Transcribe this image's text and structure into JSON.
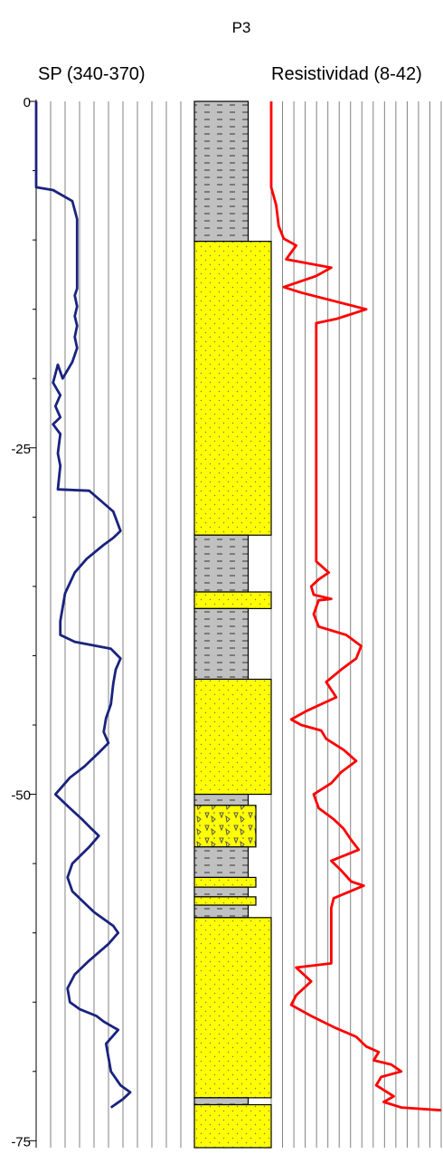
{
  "title": "P3",
  "colors": {
    "sp_curve": "#1a237e",
    "res_curve": "#ff0000",
    "sand": "#ffff00",
    "shale": "#c0c0c0",
    "grid": "#808080",
    "axis": "#000000"
  },
  "chart_data": {
    "type": "line",
    "title": "P3",
    "y_axis": {
      "range": [
        -75.5,
        0
      ],
      "tick_labels": [
        "0",
        "-25",
        "-50",
        "-75"
      ],
      "tick_values": [
        0,
        -25,
        -50,
        -75
      ],
      "minor_tick_step": 5
    },
    "tracks": [
      {
        "name": "SP (340-370)",
        "x_range": [
          340,
          370
        ],
        "grid_lines": 11,
        "series": [
          {
            "name": "SP (340-370)",
            "color": "#1a237e",
            "points": [
              [
                340.0,
                0
              ],
              [
                340.0,
                -6.2
              ],
              [
                343.5,
                -6.4
              ],
              [
                347.5,
                -7.2
              ],
              [
                348.5,
                -8.5
              ],
              [
                348.5,
                -13.5
              ],
              [
                348.0,
                -14.0
              ],
              [
                348.5,
                -14.8
              ],
              [
                348.0,
                -15.5
              ],
              [
                348.5,
                -16.2
              ],
              [
                348.0,
                -17.0
              ],
              [
                348.5,
                -17.8
              ],
              [
                347.5,
                -18.8
              ],
              [
                345.5,
                -20.0
              ],
              [
                344.5,
                -19.0
              ],
              [
                343.5,
                -20.3
              ],
              [
                345.0,
                -21.2
              ],
              [
                344.0,
                -22.0
              ],
              [
                345.0,
                -22.8
              ],
              [
                343.5,
                -23.3
              ],
              [
                345.0,
                -24.0
              ],
              [
                344.5,
                -25.4
              ],
              [
                345.0,
                -26.3
              ],
              [
                344.5,
                -28.0
              ],
              [
                351.0,
                -28.1
              ],
              [
                354.0,
                -29.0
              ],
              [
                356.0,
                -29.6
              ],
              [
                357.5,
                -31.0
              ],
              [
                356.0,
                -31.5
              ],
              [
                354.0,
                -32.0
              ],
              [
                350.5,
                -33.0
              ],
              [
                348.0,
                -34.0
              ],
              [
                346.0,
                -35.5
              ],
              [
                345.0,
                -37.5
              ],
              [
                345.0,
                -38.5
              ],
              [
                348.0,
                -39.0
              ],
              [
                355.5,
                -39.5
              ],
              [
                357.5,
                -40.2
              ],
              [
                356.5,
                -41.0
              ],
              [
                356.0,
                -42.0
              ],
              [
                355.5,
                -43.5
              ],
              [
                354.5,
                -44.5
              ],
              [
                354.0,
                -45.5
              ],
              [
                355.0,
                -46.3
              ],
              [
                353.0,
                -47.0
              ],
              [
                350.0,
                -48.0
              ],
              [
                347.0,
                -48.8
              ],
              [
                345.0,
                -49.6
              ],
              [
                344.0,
                -50.0
              ],
              [
                347.0,
                -51.0
              ],
              [
                349.5,
                -51.8
              ],
              [
                351.5,
                -52.5
              ],
              [
                353.0,
                -53.0
              ],
              [
                351.0,
                -53.8
              ],
              [
                347.5,
                -55.0
              ],
              [
                346.5,
                -56.0
              ],
              [
                347.5,
                -57.0
              ],
              [
                352.0,
                -58.5
              ],
              [
                356.0,
                -59.5
              ],
              [
                357.0,
                -60.0
              ],
              [
                355.0,
                -60.8
              ],
              [
                351.0,
                -62.0
              ],
              [
                348.0,
                -63.0
              ],
              [
                346.5,
                -64.0
              ],
              [
                347.0,
                -65.0
              ],
              [
                349.0,
                -65.5
              ],
              [
                352.5,
                -66.0
              ],
              [
                354.0,
                -66.4
              ],
              [
                357.0,
                -67.0
              ],
              [
                354.5,
                -68.0
              ],
              [
                355.0,
                -69.0
              ],
              [
                355.5,
                -70.0
              ],
              [
                357.5,
                -71.0
              ],
              [
                359.5,
                -71.5
              ],
              [
                358.0,
                -72.0
              ],
              [
                355.5,
                -72.6
              ]
            ]
          }
        ]
      },
      {
        "name": "Resistividad (8-42)",
        "x_range": [
          8,
          42
        ],
        "grid_lines": 16,
        "series": [
          {
            "name": "Resistividad (8-42)",
            "color": "#ff0000",
            "points": [
              [
                8.0,
                0
              ],
              [
                8.0,
                -6.2
              ],
              [
                9.0,
                -7.5
              ],
              [
                9.5,
                -9.0
              ],
              [
                10.5,
                -9.9
              ],
              [
                13.0,
                -10.4
              ],
              [
                11.0,
                -11.4
              ],
              [
                20.0,
                -12.0
              ],
              [
                17.0,
                -12.6
              ],
              [
                10.5,
                -13.4
              ],
              [
                14.0,
                -13.8
              ],
              [
                27.0,
                -15.0
              ],
              [
                21.0,
                -15.7
              ],
              [
                17.0,
                -16.0
              ],
              [
                17.0,
                -33.2
              ],
              [
                19.5,
                -34.0
              ],
              [
                17.5,
                -34.5
              ],
              [
                16.0,
                -35.0
              ],
              [
                16.5,
                -35.6
              ],
              [
                20.0,
                -35.9
              ],
              [
                17.5,
                -36.0
              ],
              [
                16.5,
                -37.0
              ],
              [
                17.5,
                -37.9
              ],
              [
                23.0,
                -38.5
              ],
              [
                26.0,
                -39.3
              ],
              [
                25.0,
                -40.2
              ],
              [
                22.0,
                -41.0
              ],
              [
                19.0,
                -41.9
              ],
              [
                21.0,
                -43.0
              ],
              [
                15.0,
                -44.0
              ],
              [
                12.0,
                -44.6
              ],
              [
                14.0,
                -45.0
              ],
              [
                18.0,
                -45.4
              ],
              [
                19.0,
                -46.0
              ],
              [
                22.5,
                -46.8
              ],
              [
                25.0,
                -47.6
              ],
              [
                22.0,
                -48.4
              ],
              [
                20.0,
                -49.2
              ],
              [
                16.5,
                -50.0
              ],
              [
                17.5,
                -51.0
              ],
              [
                20.5,
                -51.8
              ],
              [
                22.5,
                -52.5
              ],
              [
                24.0,
                -53.3
              ],
              [
                25.5,
                -54.0
              ],
              [
                20.0,
                -54.8
              ],
              [
                22.0,
                -55.5
              ],
              [
                24.0,
                -56.3
              ],
              [
                26.5,
                -56.6
              ],
              [
                20.5,
                -57.5
              ],
              [
                20.0,
                -58.2
              ],
              [
                20.0,
                -62.2
              ],
              [
                13.0,
                -62.5
              ],
              [
                16.0,
                -63.5
              ],
              [
                13.0,
                -64.5
              ],
              [
                12.0,
                -65.2
              ],
              [
                16.0,
                -66.0
              ],
              [
                20.5,
                -66.8
              ],
              [
                25.0,
                -67.5
              ],
              [
                27.0,
                -68.2
              ],
              [
                29.5,
                -68.6
              ],
              [
                28.5,
                -69.2
              ],
              [
                32.0,
                -69.5
              ],
              [
                34.0,
                -70.0
              ],
              [
                30.0,
                -70.4
              ],
              [
                29.0,
                -71.0
              ],
              [
                32.5,
                -71.8
              ],
              [
                30.5,
                -72.2
              ],
              [
                34.0,
                -72.6
              ],
              [
                42.0,
                -72.8
              ]
            ]
          }
        ]
      }
    ],
    "lithology": [
      {
        "type": "shale",
        "top": 0,
        "bottom": -10.1,
        "width": 0.7
      },
      {
        "type": "sand",
        "top": -10.1,
        "bottom": -31.3,
        "width": 1.0
      },
      {
        "type": "shale",
        "top": -31.3,
        "bottom": -35.4,
        "width": 0.7
      },
      {
        "type": "sand",
        "top": -35.4,
        "bottom": -36.6,
        "width": 1.0
      },
      {
        "type": "shale",
        "top": -36.6,
        "bottom": -41.7,
        "width": 0.7
      },
      {
        "type": "sand",
        "top": -41.7,
        "bottom": -50.0,
        "width": 1.0
      },
      {
        "type": "shale",
        "top": -50.0,
        "bottom": -50.8,
        "width": 0.7
      },
      {
        "type": "conglomerate",
        "top": -50.8,
        "bottom": -53.8,
        "width": 0.8
      },
      {
        "type": "shale",
        "top": -53.8,
        "bottom": -56.0,
        "width": 0.7
      },
      {
        "type": "sand",
        "top": -56.0,
        "bottom": -56.7,
        "width": 0.8
      },
      {
        "type": "shale",
        "top": -56.7,
        "bottom": -57.4,
        "width": 0.7
      },
      {
        "type": "sand",
        "top": -57.4,
        "bottom": -58.0,
        "width": 0.8
      },
      {
        "type": "shale",
        "top": -58.0,
        "bottom": -58.9,
        "width": 0.7
      },
      {
        "type": "sand",
        "top": -58.9,
        "bottom": -71.9,
        "width": 1.0
      },
      {
        "type": "shale",
        "top": -71.9,
        "bottom": -72.4,
        "width": 0.7
      },
      {
        "type": "sand",
        "top": -72.4,
        "bottom": -75.5,
        "width": 1.0
      }
    ]
  }
}
